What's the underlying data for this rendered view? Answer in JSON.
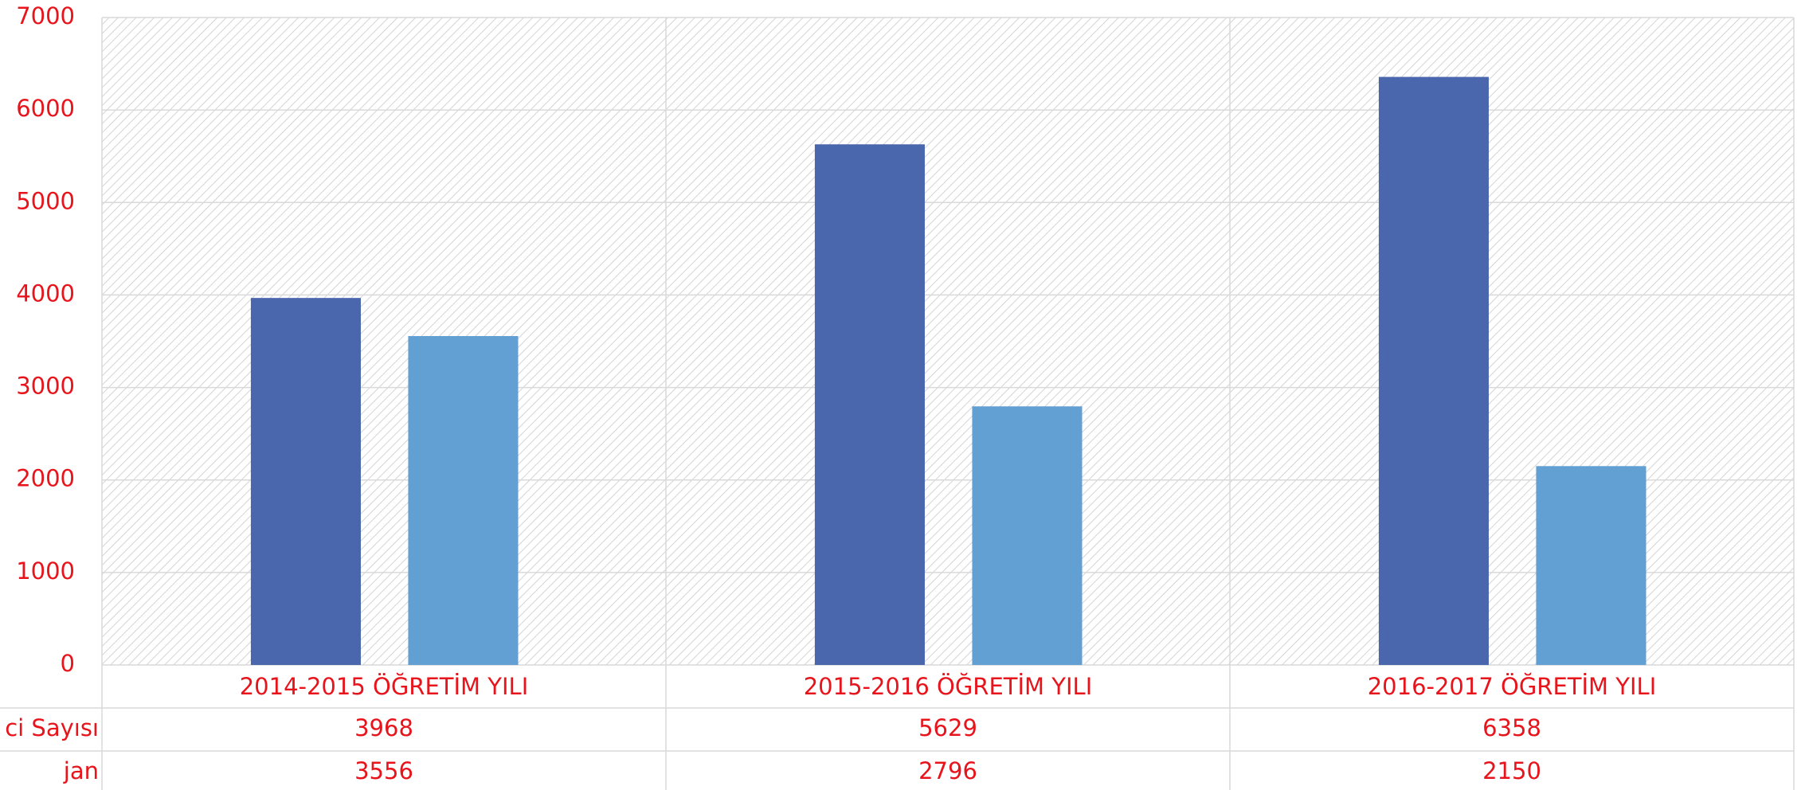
{
  "chart_data": {
    "type": "bar",
    "categories": [
      "2014-2015 ÖĞRETİM YILI",
      "2015-2016 ÖĞRETİM YILI",
      "2016-2017 ÖĞRETİM YILI"
    ],
    "series": [
      {
        "name": "ci Sayısı",
        "color": "#4a67ae",
        "values": [
          3968,
          5629,
          6358
        ]
      },
      {
        "name": "jan",
        "color": "#629fd2",
        "values": [
          3556,
          2796,
          2150
        ]
      }
    ],
    "ylim": [
      0,
      7000
    ],
    "yticks": [
      0,
      1000,
      2000,
      3000,
      4000,
      5000,
      6000,
      7000
    ],
    "grid": true
  }
}
